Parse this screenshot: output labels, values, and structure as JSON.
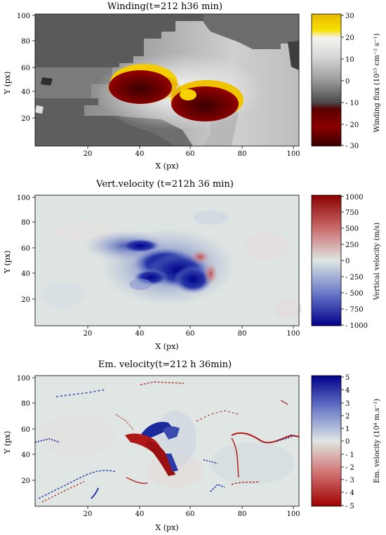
{
  "chart_data": [
    {
      "type": "heatmap",
      "title": "Winding(t=212 h36 min)",
      "xlabel": "X (px)",
      "ylabel": "Y (px)",
      "xlim": [
        1,
        100
      ],
      "ylim": [
        1,
        100
      ],
      "x_ticks": [
        "20",
        "40",
        "60",
        "80",
        "100"
      ],
      "y_ticks": [
        "20",
        "40",
        "60",
        "80",
        "100"
      ],
      "colorbar_label": "Winding flux (10¹⁵ cm⁻² s⁻¹)",
      "colorbar_range": [
        -30,
        30
      ],
      "colorbar_ticks": [
        "30",
        "20",
        "10",
        "0",
        "- 10",
        "- 20",
        "- 30"
      ],
      "features": [
        {
          "label": "negative winding core",
          "x": 44,
          "y": 42,
          "value": -30
        },
        {
          "label": "negative winding core",
          "x": 67,
          "y": 32,
          "value": -30
        },
        {
          "label": "positive winding rim",
          "x": 44,
          "y": 50,
          "value": 30
        },
        {
          "label": "positive winding rim",
          "x": 74,
          "y": 30,
          "value": 30
        }
      ]
    },
    {
      "type": "heatmap",
      "title": "Vert.velocity (t=212h 36 min)",
      "xlabel": "X (px)",
      "ylabel": "Y (px)",
      "xlim": [
        1,
        100
      ],
      "ylim": [
        1,
        100
      ],
      "x_ticks": [
        "20",
        "40",
        "60",
        "80",
        "100"
      ],
      "y_ticks": [
        "20",
        "40",
        "60",
        "80",
        "100"
      ],
      "colorbar_label": "Vertical velocity (m/s)",
      "colorbar_range": [
        -1000,
        1000
      ],
      "colorbar_ticks": [
        "1000",
        "750",
        "500",
        "250",
        "0",
        "- 250",
        "- 500",
        "- 750",
        "- 1000"
      ],
      "features": [
        {
          "label": "downflow",
          "x": 55,
          "y": 42,
          "value": -900
        },
        {
          "label": "downflow",
          "x": 42,
          "y": 55,
          "value": -650
        },
        {
          "label": "upflow",
          "x": 65,
          "y": 50,
          "value": 400
        }
      ]
    },
    {
      "type": "heatmap",
      "title": "Em. velocity(t=212 h 36min)",
      "xlabel": "X (px)",
      "ylabel": "Y (px)",
      "xlim": [
        1,
        100
      ],
      "ylim": [
        1,
        100
      ],
      "x_ticks": [
        "20",
        "40",
        "60",
        "80",
        "100"
      ],
      "y_ticks": [
        "20",
        "40",
        "60",
        "80",
        "100"
      ],
      "colorbar_label": "Em. velocity (10⁴ m.s⁻¹)",
      "colorbar_range": [
        -5,
        5
      ],
      "colorbar_ticks": [
        "5",
        "4",
        "3",
        "2",
        "1",
        "0",
        "- 1",
        "- 2",
        "- 3",
        "- 4",
        "- 5"
      ],
      "features": [
        {
          "label": "positive emergence",
          "x": 46,
          "y": 60,
          "value": 5
        },
        {
          "label": "negative emergence",
          "x": 42,
          "y": 52,
          "value": -5
        },
        {
          "label": "negative emergence",
          "x": 52,
          "y": 30,
          "value": -5
        }
      ]
    }
  ],
  "colors": {
    "winding": [
      "#3a0000",
      "#8b0000",
      "#3a3a3a",
      "#888888",
      "#ffffff",
      "#d8d8d8",
      "#f7d000",
      "#e0b800"
    ],
    "vertical": [
      "#00008b",
      "#4060c0",
      "#dfe6e3",
      "#c06060",
      "#8b0000"
    ],
    "emergence": [
      "#a00000",
      "#d08080",
      "#dfe6e3",
      "#7080c0",
      "#00008b"
    ]
  }
}
